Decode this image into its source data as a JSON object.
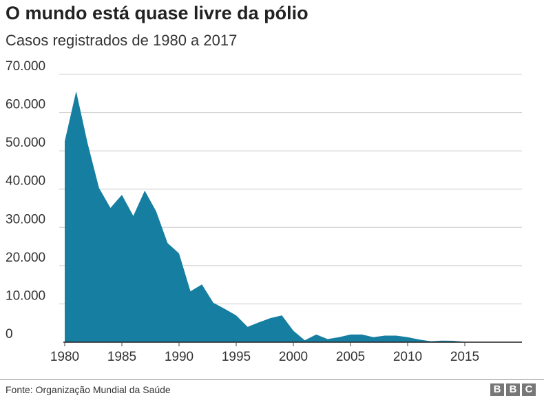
{
  "chart_data": {
    "type": "area",
    "title": "O mundo está quase livre da pólio",
    "subtitle": "Casos registrados de 1980 a 2017",
    "xlabel": "",
    "ylabel": "",
    "xlim": [
      1980,
      2020
    ],
    "ylim": [
      0,
      70000
    ],
    "grid": true,
    "color": "#167ea1",
    "yticks": [
      0,
      10000,
      20000,
      30000,
      40000,
      50000,
      60000,
      70000
    ],
    "ytick_labels": [
      "0",
      "10.000",
      "20.000",
      "30.000",
      "40.000",
      "50.000",
      "60.000",
      "70.000"
    ],
    "xticks": [
      1980,
      1985,
      1990,
      1995,
      2000,
      2005,
      2010,
      2015
    ],
    "xtick_labels": [
      "1980",
      "1985",
      "1990",
      "1995",
      "2000",
      "2005",
      "2010",
      "2015"
    ],
    "x": [
      1980,
      1981,
      1982,
      1983,
      1984,
      1985,
      1986,
      1987,
      1988,
      1989,
      1990,
      1991,
      1992,
      1993,
      1994,
      1995,
      1996,
      1997,
      1998,
      1999,
      2000,
      2001,
      2002,
      2003,
      2004,
      2005,
      2006,
      2007,
      2008,
      2009,
      2010,
      2011,
      2012,
      2013,
      2014,
      2015,
      2016,
      2017
    ],
    "values": [
      52500,
      65600,
      52000,
      40300,
      35100,
      38500,
      33000,
      39600,
      34200,
      25900,
      23200,
      13300,
      15100,
      10300,
      8700,
      7000,
      4000,
      5200,
      6300,
      7000,
      3000,
      500,
      2000,
      800,
      1300,
      2000,
      2000,
      1300,
      1700,
      1700,
      1300,
      700,
      250,
      400,
      350,
      100,
      40,
      20
    ]
  },
  "footer": {
    "source": "Fonte: Organização Mundial da Saúde",
    "logo": [
      "B",
      "B",
      "C"
    ]
  }
}
